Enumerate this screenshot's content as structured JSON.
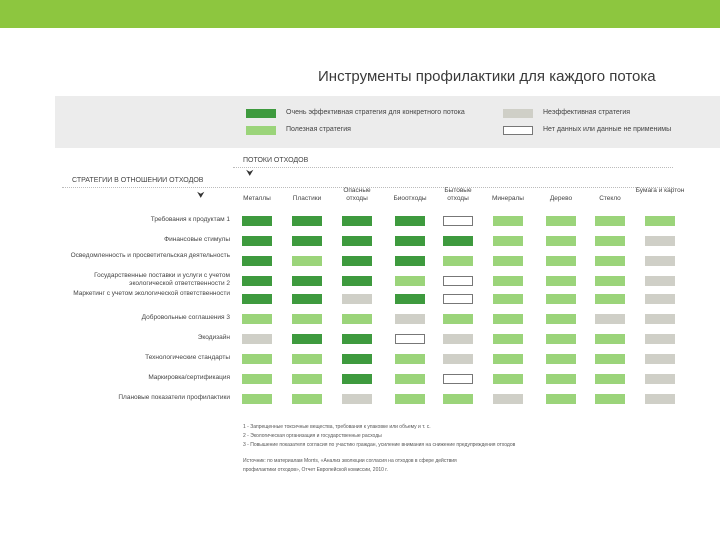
{
  "title": "Инструменты профилактики для каждого потока",
  "colors": {
    "very_effective": "#3e9a3e",
    "useful": "#9bd47a",
    "ineffective": "#cfcfc7",
    "no_data": "#ffffff",
    "accent_bar": "#8dc63f"
  },
  "legend": {
    "very_effective": "Очень эффективная стратегия для конкретного потока",
    "useful": "Полезная стратегия",
    "ineffective": "Неэффективная стратегия",
    "no_data": "Нет данных или данные не применимы"
  },
  "flows_header": "ПОТОКИ ОТХОДОВ",
  "strategies_header": "СТРАТЕГИИ В ОТНОШЕНИИ ОТХОДОВ",
  "columns": [
    "Металлы",
    "Пластики",
    "Опасные отходы",
    "Биоотходы",
    "Бытовые отходы",
    "Минералы",
    "Дерево",
    "Стекло",
    "Бумага и картон"
  ],
  "rows": [
    {
      "label": "Требования к продуктам 1",
      "cells": [
        "eff",
        "eff",
        "eff",
        "eff",
        "none",
        "use",
        "use",
        "use",
        "use"
      ]
    },
    {
      "label": "Финансовые стимулы",
      "cells": [
        "eff",
        "eff",
        "eff",
        "eff",
        "eff",
        "use",
        "use",
        "use",
        "ineff"
      ]
    },
    {
      "label": "Осведомленность и просветительская деятельность",
      "cells": [
        "eff",
        "use",
        "eff",
        "eff",
        "use",
        "use",
        "use",
        "use",
        "ineff"
      ]
    },
    {
      "label": "Государственные поставки и услуги с учетом экологической ответственности 2",
      "cells": [
        "eff",
        "eff",
        "eff",
        "use",
        "none",
        "use",
        "use",
        "use",
        "ineff"
      ]
    },
    {
      "label": "Маркетинг с учетом экологической ответственности",
      "cells": [
        "eff",
        "eff",
        "ineff",
        "eff",
        "none",
        "use",
        "use",
        "use",
        "ineff"
      ]
    },
    {
      "label": "Добровольные соглашения 3",
      "cells": [
        "use",
        "use",
        "use",
        "ineff",
        "use",
        "use",
        "use",
        "ineff",
        "ineff"
      ]
    },
    {
      "label": "Экодизайн",
      "cells": [
        "ineff",
        "eff",
        "eff",
        "none",
        "ineff",
        "use",
        "use",
        "use",
        "ineff"
      ]
    },
    {
      "label": "Технологические стандарты",
      "cells": [
        "use",
        "use",
        "eff",
        "use",
        "ineff",
        "use",
        "use",
        "use",
        "ineff"
      ]
    },
    {
      "label": "Маркировка/сертификация",
      "cells": [
        "use",
        "use",
        "eff",
        "use",
        "none",
        "use",
        "use",
        "use",
        "ineff"
      ]
    },
    {
      "label": "Плановые показатели профилактики",
      "cells": [
        "use",
        "use",
        "ineff",
        "use",
        "use",
        "ineff",
        "use",
        "use",
        "ineff"
      ]
    }
  ],
  "footnotes": [
    "1 - Запрещенные токсичные вещества, требования к упаковке или объему и т. с.",
    "2 - Экологическая организация и государственные расходы",
    "3 - Повышение показателя согласия по участию граждан, усиление внимания на снижение предупреждения отходов"
  ],
  "source_lines": [
    "Источник: по материалам Morris, «Анализ эволюции согласия на отходов в сфере действия",
    "профилактики отходов», Отчет Европейской комиссии, 2010 г."
  ]
}
